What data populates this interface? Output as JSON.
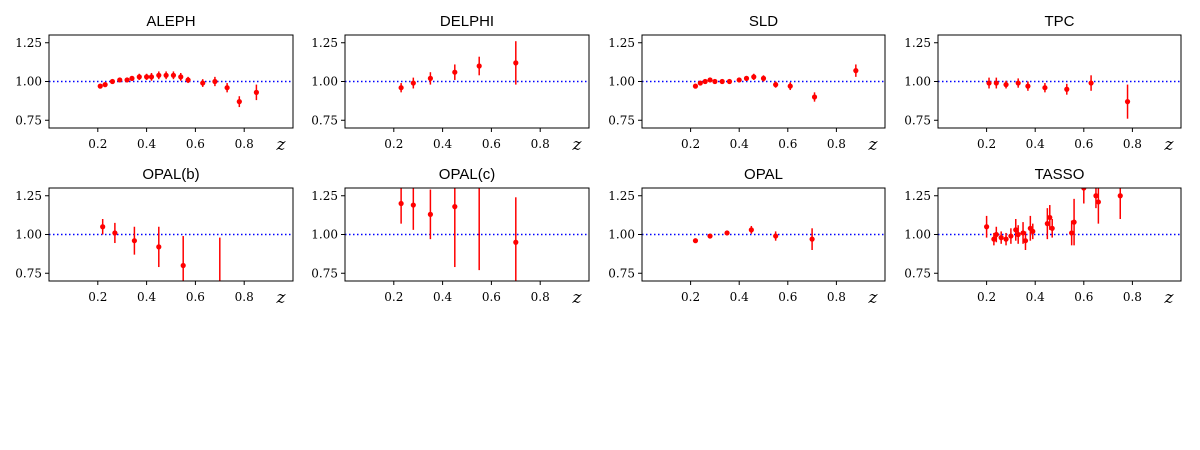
{
  "figure": {
    "colors": {
      "points": "#ff0000",
      "reference": "#0000ff",
      "frame": "#000000"
    }
  },
  "chart_data": [
    {
      "type": "scatter",
      "title": "ALEPH",
      "xlabel": "z",
      "ylabel": "",
      "xlim": [
        0,
        1.0
      ],
      "ylim": [
        0.7,
        1.3
      ],
      "xticks": [
        0.2,
        0.4,
        0.6,
        0.8
      ],
      "yticks": [
        0.75,
        1.0,
        1.25
      ],
      "reference_line": 1.0,
      "grid": false,
      "points": [
        {
          "x": 0.21,
          "y": 0.97,
          "err": 0.01
        },
        {
          "x": 0.23,
          "y": 0.98,
          "err": 0.01
        },
        {
          "x": 0.26,
          "y": 1.0,
          "err": 0.01
        },
        {
          "x": 0.29,
          "y": 1.01,
          "err": 0.01
        },
        {
          "x": 0.32,
          "y": 1.01,
          "err": 0.015
        },
        {
          "x": 0.34,
          "y": 1.02,
          "err": 0.015
        },
        {
          "x": 0.37,
          "y": 1.03,
          "err": 0.02
        },
        {
          "x": 0.4,
          "y": 1.03,
          "err": 0.02
        },
        {
          "x": 0.42,
          "y": 1.03,
          "err": 0.025
        },
        {
          "x": 0.45,
          "y": 1.04,
          "err": 0.025
        },
        {
          "x": 0.48,
          "y": 1.04,
          "err": 0.025
        },
        {
          "x": 0.51,
          "y": 1.04,
          "err": 0.025
        },
        {
          "x": 0.54,
          "y": 1.03,
          "err": 0.025
        },
        {
          "x": 0.57,
          "y": 1.01,
          "err": 0.02
        },
        {
          "x": 0.63,
          "y": 0.99,
          "err": 0.025
        },
        {
          "x": 0.68,
          "y": 1.0,
          "err": 0.03
        },
        {
          "x": 0.73,
          "y": 0.96,
          "err": 0.03
        },
        {
          "x": 0.78,
          "y": 0.87,
          "err": 0.035
        },
        {
          "x": 0.85,
          "y": 0.93,
          "err": 0.05
        }
      ]
    },
    {
      "type": "scatter",
      "title": "DELPHI",
      "xlabel": "z",
      "ylabel": "",
      "xlim": [
        0,
        1.0
      ],
      "ylim": [
        0.7,
        1.3
      ],
      "xticks": [
        0.2,
        0.4,
        0.6,
        0.8
      ],
      "yticks": [
        0.75,
        1.0,
        1.25
      ],
      "reference_line": 1.0,
      "grid": false,
      "points": [
        {
          "x": 0.23,
          "y": 0.96,
          "err": 0.03
        },
        {
          "x": 0.28,
          "y": 0.99,
          "err": 0.035
        },
        {
          "x": 0.35,
          "y": 1.02,
          "err": 0.04
        },
        {
          "x": 0.45,
          "y": 1.06,
          "err": 0.05
        },
        {
          "x": 0.55,
          "y": 1.1,
          "err": 0.06
        },
        {
          "x": 0.7,
          "y": 1.12,
          "err": 0.14
        }
      ]
    },
    {
      "type": "scatter",
      "title": "SLD",
      "xlabel": "z",
      "ylabel": "",
      "xlim": [
        0,
        1.0
      ],
      "ylim": [
        0.7,
        1.3
      ],
      "xticks": [
        0.2,
        0.4,
        0.6,
        0.8
      ],
      "yticks": [
        0.75,
        1.0,
        1.25
      ],
      "reference_line": 1.0,
      "grid": false,
      "points": [
        {
          "x": 0.22,
          "y": 0.97,
          "err": 0.01
        },
        {
          "x": 0.24,
          "y": 0.99,
          "err": 0.01
        },
        {
          "x": 0.26,
          "y": 1.0,
          "err": 0.01
        },
        {
          "x": 0.28,
          "y": 1.01,
          "err": 0.015
        },
        {
          "x": 0.3,
          "y": 1.0,
          "err": 0.01
        },
        {
          "x": 0.33,
          "y": 1.0,
          "err": 0.01
        },
        {
          "x": 0.36,
          "y": 1.0,
          "err": 0.015
        },
        {
          "x": 0.4,
          "y": 1.01,
          "err": 0.015
        },
        {
          "x": 0.43,
          "y": 1.02,
          "err": 0.015
        },
        {
          "x": 0.46,
          "y": 1.03,
          "err": 0.02
        },
        {
          "x": 0.5,
          "y": 1.02,
          "err": 0.02
        },
        {
          "x": 0.55,
          "y": 0.98,
          "err": 0.02
        },
        {
          "x": 0.61,
          "y": 0.97,
          "err": 0.025
        },
        {
          "x": 0.71,
          "y": 0.9,
          "err": 0.03
        },
        {
          "x": 0.88,
          "y": 1.07,
          "err": 0.04
        }
      ]
    },
    {
      "type": "scatter",
      "title": "TPC",
      "xlabel": "z",
      "ylabel": "",
      "xlim": [
        0,
        1.0
      ],
      "ylim": [
        0.7,
        1.3
      ],
      "xticks": [
        0.2,
        0.4,
        0.6,
        0.8
      ],
      "yticks": [
        0.75,
        1.0,
        1.25
      ],
      "reference_line": 1.0,
      "grid": false,
      "points": [
        {
          "x": 0.21,
          "y": 0.99,
          "err": 0.035
        },
        {
          "x": 0.24,
          "y": 0.99,
          "err": 0.035
        },
        {
          "x": 0.28,
          "y": 0.98,
          "err": 0.025
        },
        {
          "x": 0.33,
          "y": 0.99,
          "err": 0.03
        },
        {
          "x": 0.37,
          "y": 0.97,
          "err": 0.03
        },
        {
          "x": 0.44,
          "y": 0.96,
          "err": 0.03
        },
        {
          "x": 0.53,
          "y": 0.95,
          "err": 0.035
        },
        {
          "x": 0.63,
          "y": 0.99,
          "err": 0.05
        },
        {
          "x": 0.78,
          "y": 0.87,
          "err": 0.11
        }
      ]
    },
    {
      "type": "scatter",
      "title": "OPAL(b)",
      "xlabel": "z",
      "ylabel": "",
      "xlim": [
        0,
        1.0
      ],
      "ylim": [
        0.7,
        1.3
      ],
      "xticks": [
        0.2,
        0.4,
        0.6,
        0.8
      ],
      "yticks": [
        0.75,
        1.0,
        1.25
      ],
      "reference_line": 1.0,
      "grid": false,
      "points": [
        {
          "x": 0.22,
          "y": 1.05,
          "err": 0.05
        },
        {
          "x": 0.27,
          "y": 1.01,
          "err": 0.065
        },
        {
          "x": 0.35,
          "y": 0.96,
          "err": 0.09
        },
        {
          "x": 0.45,
          "y": 0.92,
          "err": 0.13
        },
        {
          "x": 0.55,
          "y": 0.8,
          "err": 0.19
        },
        {
          "x": 0.7,
          "y": 0.6,
          "err": 0.38
        }
      ]
    },
    {
      "type": "scatter",
      "title": "OPAL(c)",
      "xlabel": "z",
      "ylabel": "",
      "xlim": [
        0,
        1.0
      ],
      "ylim": [
        0.7,
        1.3
      ],
      "xticks": [
        0.2,
        0.4,
        0.6,
        0.8
      ],
      "yticks": [
        0.75,
        1.0,
        1.25
      ],
      "reference_line": 1.0,
      "grid": false,
      "points": [
        {
          "x": 0.23,
          "y": 1.2,
          "err": 0.13
        },
        {
          "x": 0.28,
          "y": 1.19,
          "err": 0.16
        },
        {
          "x": 0.35,
          "y": 1.13,
          "err": 0.16
        },
        {
          "x": 0.45,
          "y": 1.18,
          "err": 0.39
        },
        {
          "x": 0.55,
          "y": 1.35,
          "err": 0.58
        },
        {
          "x": 0.7,
          "y": 0.95,
          "err": 0.29
        }
      ]
    },
    {
      "type": "scatter",
      "title": "OPAL",
      "xlabel": "z",
      "ylabel": "",
      "xlim": [
        0,
        1.0
      ],
      "ylim": [
        0.7,
        1.3
      ],
      "xticks": [
        0.2,
        0.4,
        0.6,
        0.8
      ],
      "yticks": [
        0.75,
        1.0,
        1.25
      ],
      "reference_line": 1.0,
      "grid": false,
      "points": [
        {
          "x": 0.22,
          "y": 0.96,
          "err": 0.01
        },
        {
          "x": 0.28,
          "y": 0.99,
          "err": 0.01
        },
        {
          "x": 0.35,
          "y": 1.01,
          "err": 0.015
        },
        {
          "x": 0.45,
          "y": 1.03,
          "err": 0.025
        },
        {
          "x": 0.55,
          "y": 0.99,
          "err": 0.03
        },
        {
          "x": 0.7,
          "y": 0.97,
          "err": 0.07
        }
      ]
    },
    {
      "type": "scatter",
      "title": "TASSO",
      "xlabel": "z",
      "ylabel": "",
      "xlim": [
        0,
        1.0
      ],
      "ylim": [
        0.7,
        1.3
      ],
      "xticks": [
        0.2,
        0.4,
        0.6,
        0.8
      ],
      "yticks": [
        0.75,
        1.0,
        1.25
      ],
      "reference_line": 1.0,
      "grid": false,
      "points": [
        {
          "x": 0.2,
          "y": 1.05,
          "err": 0.07
        },
        {
          "x": 0.23,
          "y": 0.97,
          "err": 0.04
        },
        {
          "x": 0.24,
          "y": 1.0,
          "err": 0.05
        },
        {
          "x": 0.26,
          "y": 0.98,
          "err": 0.04
        },
        {
          "x": 0.28,
          "y": 0.97,
          "err": 0.04
        },
        {
          "x": 0.3,
          "y": 0.99,
          "err": 0.05
        },
        {
          "x": 0.32,
          "y": 1.03,
          "err": 0.07
        },
        {
          "x": 0.33,
          "y": 1.0,
          "err": 0.06
        },
        {
          "x": 0.35,
          "y": 1.01,
          "err": 0.07
        },
        {
          "x": 0.36,
          "y": 0.96,
          "err": 0.06
        },
        {
          "x": 0.38,
          "y": 1.04,
          "err": 0.08
        },
        {
          "x": 0.39,
          "y": 1.02,
          "err": 0.05
        },
        {
          "x": 0.45,
          "y": 1.07,
          "err": 0.1
        },
        {
          "x": 0.46,
          "y": 1.11,
          "err": 0.08
        },
        {
          "x": 0.47,
          "y": 1.04,
          "err": 0.06
        },
        {
          "x": 0.55,
          "y": 1.01,
          "err": 0.08
        },
        {
          "x": 0.56,
          "y": 1.08,
          "err": 0.15
        },
        {
          "x": 0.6,
          "y": 1.3,
          "err": 0.1
        },
        {
          "x": 0.65,
          "y": 1.25,
          "err": 0.08
        },
        {
          "x": 0.66,
          "y": 1.21,
          "err": 0.14
        },
        {
          "x": 0.75,
          "y": 1.25,
          "err": 0.15
        }
      ]
    }
  ]
}
